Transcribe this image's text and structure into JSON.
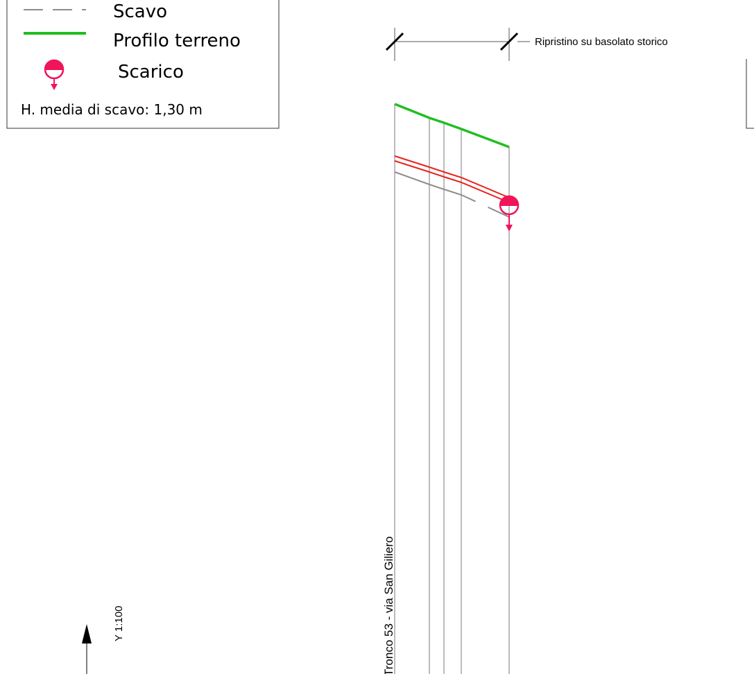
{
  "legend": {
    "items": [
      {
        "label": "Scavo",
        "symbol": "dashed-gray-line",
        "color": "#8c8c8c"
      },
      {
        "label": "Profilo terreno",
        "symbol": "solid-green-line",
        "color": "#1fbf1f"
      },
      {
        "label": "Scarico",
        "symbol": "discharge-icon",
        "color": "#f0145a"
      }
    ],
    "note": "H. media di scavo: 1,30 m"
  },
  "dimension": {
    "label": "Ripristino su basolato storico"
  },
  "section": {
    "label": "Tronco 53 - via San Giliero"
  },
  "scale": {
    "label": "Y 1:100"
  },
  "colors": {
    "ground_profile": "#1fbf1f",
    "pipe": "#e8231c",
    "excavation": "#8c8c8c",
    "discharge": "#f0145a",
    "grid": "#7a7a7a"
  }
}
